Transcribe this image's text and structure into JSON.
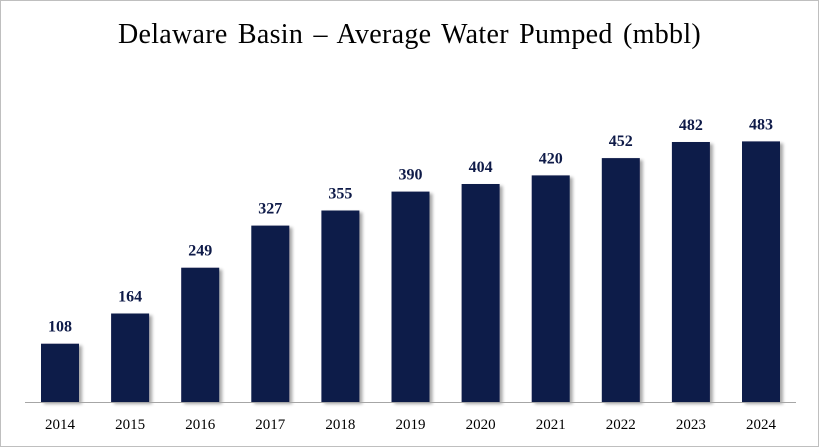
{
  "chart_data": {
    "type": "bar",
    "title": "Delaware Basin – Average Water Pumped (mbbl)",
    "categories": [
      "2014",
      "2015",
      "2016",
      "2017",
      "2018",
      "2019",
      "2020",
      "2021",
      "2022",
      "2023",
      "2024"
    ],
    "values": [
      108,
      164,
      249,
      327,
      355,
      390,
      404,
      420,
      452,
      482,
      483
    ],
    "xlabel": "",
    "ylabel": "",
    "ylim": [
      0,
      500
    ],
    "grid": false,
    "legend": "none",
    "colors": {
      "bar": "#0e1a48",
      "shadow": "#c8c8c8",
      "label": "#0e1a48",
      "axis": "#a6a6a6"
    }
  }
}
